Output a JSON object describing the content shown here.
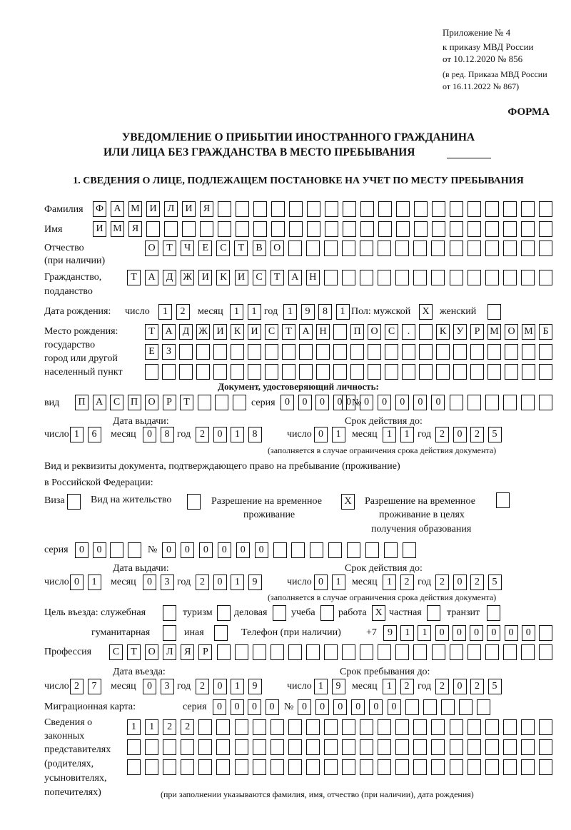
{
  "header": {
    "appendix_lines": [
      "Приложение № 4",
      "к приказу МВД России",
      "от 10.12.2020 № 856"
    ],
    "revision_lines": [
      "(в ред. Приказа МВД России",
      "от 16.11.2022 № 867)"
    ],
    "form_label": "ФОРМА",
    "title_line1": "УВЕДОМЛЕНИЕ О ПРИБЫТИИ ИНОСТРАННОГО ГРАЖДАНИНА",
    "title_line2": "ИЛИ ЛИЦА БЕЗ ГРАЖДАНСТВА В МЕСТО ПРЕБЫВАНИЯ",
    "section1": "1. СВЕДЕНИЯ О ЛИЦЕ, ПОДЛЕЖАЩЕМ ПОСТАНОВКЕ НА УЧЕТ ПО МЕСТУ ПРЕБЫВАНИЯ"
  },
  "labels": {
    "surname": "Фамилия",
    "name": "Имя",
    "patronymic1": "Отчество",
    "patronymic2": "(при наличии)",
    "citizenship1": "Гражданство,",
    "citizenship2": "подданство",
    "birth_date": "Дата рождения:",
    "day": "число",
    "month": "месяц",
    "year": "год",
    "sex": "Пол: мужской",
    "female": "женский",
    "birthplace1": "Место рождения:",
    "birthplace2": "государство",
    "birthplace3": "город или другой",
    "birthplace4": "населенный пункт",
    "id_doc": "Документ, удостоверяющий личность:",
    "kind": "вид",
    "series": "серия",
    "number": "№",
    "issue_date": "Дата выдачи:",
    "valid_until": "Срок действия до:",
    "valid_note": "(заполняется в случае ограничения срока действия документа)",
    "right_doc1": "Вид и реквизиты документа, подтверждающего право на пребывание (проживание)",
    "right_doc2": "в Российской Федерации:",
    "visa": "Виза",
    "residence": "Вид на жительство",
    "temp_res1": "Разрешение на временное",
    "temp_res2": "проживание",
    "temp_edu1": "Разрешение на временное",
    "temp_edu2": "проживание в целях",
    "temp_edu3": "получения образования",
    "purpose": "Цель въезда: служебная",
    "tourism": "туризм",
    "business": "деловая",
    "study": "учеба",
    "work": "работа",
    "private": "частная",
    "transit": "транзит",
    "humanitarian": "гуманитарная",
    "other": "иная",
    "phone": "Телефон (при наличии)",
    "phone_prefix": "+7",
    "profession": "Профессия",
    "entry_date": "Дата въезда:",
    "stay_until": "Срок пребывания до:",
    "migration_card": "Миграционная карта:",
    "reps1": "Сведения о",
    "reps2": "законных",
    "reps3": "представителях",
    "reps4": "(родителях,",
    "reps5": "усыновителях,",
    "reps6": "попечителях)",
    "reps_note": "(при заполнении указываются фамилия, имя, отчество (при наличии), дата рождения)"
  },
  "values": {
    "surname": "ФАМИЛИЯ",
    "name": "ИМЯ",
    "patronymic": "ОТЧЕСТВО",
    "citizenship": "ТАДЖИКИСТАН",
    "birth_day": "12",
    "birth_month": "11",
    "birth_year": "1981",
    "sex_male": "X",
    "sex_female": "",
    "birthplace_row1": "ТАДЖИКИСТАН ПОС. КУРМОМБ",
    "birthplace_row2": "ЕЗ",
    "birthplace_row3": "",
    "id_kind": "ПАСПОРТ",
    "id_series": "0000",
    "id_number": "000000",
    "id_issue_day": "16",
    "id_issue_month": "08",
    "id_issue_year": "2018",
    "id_valid_day": "01",
    "id_valid_month": "11",
    "id_valid_year": "2025",
    "visa": "",
    "residence": "",
    "temp_res": "X",
    "temp_edu": "",
    "rd_series": "00",
    "rd_number": "000000",
    "rd_issue_day": "01",
    "rd_issue_month": "03",
    "rd_issue_year": "2019",
    "rd_valid_day": "01",
    "rd_valid_month": "12",
    "rd_valid_year": "2025",
    "p_service": "",
    "p_tourism": "",
    "p_business": "",
    "p_study": "",
    "p_work": "X",
    "p_private": "",
    "p_transit": "",
    "p_humanitarian": "",
    "p_other": "",
    "phone": "911000000",
    "profession": "СТОЛЯР",
    "entry_day": "27",
    "entry_month": "03",
    "entry_year": "2019",
    "stay_day": "19",
    "stay_month": "12",
    "stay_year": "2025",
    "mc_series": "0000",
    "mc_number": "000000",
    "reps_row1": "1122",
    "reps_row2": "",
    "reps_row3": ""
  }
}
